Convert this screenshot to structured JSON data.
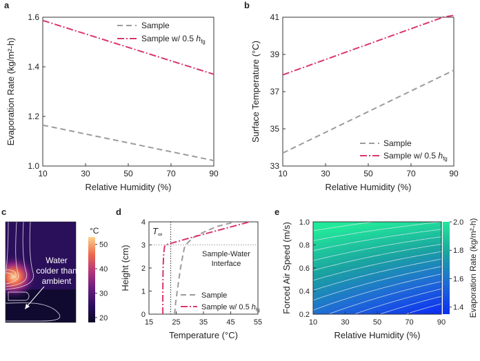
{
  "panel_labels": {
    "a": "a",
    "b": "b",
    "c": "c",
    "d": "d",
    "e": "e"
  },
  "series_names": {
    "sample": "Sample",
    "half_prefix": "Sample w/ 0.5 ",
    "h_sym": "h",
    "h_sub": "fg"
  },
  "colors": {
    "sample": "#9b9b9b",
    "half": "#d9366b",
    "grid_text": "#222222"
  },
  "panel_c": {
    "title": "",
    "annotation_line1": "Water",
    "annotation_line2": "colder than",
    "annotation_line3": "ambient",
    "colorbar_unit": "°C",
    "colorbar_ticks": [
      20,
      30,
      40,
      50
    ],
    "colorbar_range": [
      18,
      53
    ]
  },
  "chart_data": [
    {
      "id": "a",
      "type": "line",
      "xlabel": "Relative Humidity (%)",
      "ylabel": "Evaporation Rate (kg/m²-h)",
      "xlim": [
        10,
        90
      ],
      "ylim": [
        1.0,
        1.6
      ],
      "xticks": [
        10,
        30,
        50,
        70,
        90
      ],
      "yticks": [
        1.0,
        1.2,
        1.4,
        1.6
      ],
      "ytick_labels": [
        "1.0",
        "1.2",
        "1.4",
        "1.6"
      ],
      "legend": "top-right",
      "series": [
        {
          "name": "Sample",
          "style": "dashed",
          "x": [
            10,
            90
          ],
          "y": [
            1.165,
            1.022
          ]
        },
        {
          "name": "Sample w/ 0.5 hfg",
          "style": "dashdot",
          "x": [
            10,
            90
          ],
          "y": [
            1.587,
            1.37
          ]
        }
      ]
    },
    {
      "id": "b",
      "type": "line",
      "xlabel": "Relative Humidity (%)",
      "ylabel": "Surface Temperature (°C)",
      "xlim": [
        10,
        90
      ],
      "ylim": [
        33,
        41
      ],
      "xticks": [
        10,
        30,
        50,
        70,
        90
      ],
      "yticks": [
        33,
        35,
        37,
        39,
        41
      ],
      "ytick_labels": [
        "33",
        "35",
        "37",
        "39",
        "41"
      ],
      "legend": "bottom-right",
      "series": [
        {
          "name": "Sample",
          "style": "dashed",
          "x": [
            10,
            90
          ],
          "y": [
            33.7,
            38.15
          ]
        },
        {
          "name": "Sample w/ 0.5 hfg",
          "style": "dashdot",
          "x": [
            10,
            85,
            90
          ],
          "y": [
            37.9,
            41.0,
            41.1
          ]
        }
      ]
    },
    {
      "id": "d",
      "type": "line",
      "xlabel": "Temperature (°C)",
      "ylabel": "Height (cm)",
      "xlim": [
        15,
        55
      ],
      "ylim": [
        0,
        4
      ],
      "xticks": [
        15,
        25,
        35,
        45,
        55
      ],
      "yticks": [
        0,
        1,
        2,
        3,
        4
      ],
      "ytick_labels": [
        "0",
        "1",
        "2",
        "3",
        "4"
      ],
      "ambient_temperature": 23,
      "ambient_label": "T",
      "ambient_sub": "∞",
      "interface_height": 3,
      "interface_label_line1": "Sample-Water",
      "interface_label_line2": "Interface",
      "legend": "bottom-right",
      "series": [
        {
          "name": "Sample",
          "style": "dashed",
          "x": [
            24.4,
            24.8,
            25.6,
            26.6,
            27.5,
            28.2,
            31,
            35,
            40,
            45,
            47
          ],
          "y": [
            0,
            0.5,
            1.2,
            2.0,
            2.6,
            2.97,
            3.3,
            3.55,
            3.8,
            3.95,
            4.0
          ]
        },
        {
          "name": "Sample w/ 0.5 hfg",
          "style": "dashdot",
          "x": [
            20.1,
            20.1,
            20.2,
            20.4,
            20.7,
            21.0,
            30,
            40,
            52
          ],
          "y": [
            0,
            1.0,
            2.0,
            2.6,
            2.9,
            3.0,
            3.3,
            3.62,
            4.0
          ]
        }
      ]
    },
    {
      "id": "e",
      "type": "heatmap",
      "xlabel": "Relative Humidity (%)",
      "ylabel": "Forced Air Speed (m/s)",
      "xlim": [
        10,
        90
      ],
      "ylim": [
        0.2,
        1.0
      ],
      "xticks": [
        10,
        30,
        50,
        70,
        90
      ],
      "yticks": [
        0.2,
        0.4,
        0.6,
        0.8,
        1.0
      ],
      "ytick_labels": [
        "0.2",
        "0.4",
        "0.6",
        "0.8",
        "1.0"
      ],
      "colorbar_label": "Evaporation Rate (kg/m²-h)",
      "colorbar_range": [
        1.35,
        2.0
      ],
      "colorbar_ticks": [
        1.4,
        1.6,
        1.8,
        2.0
      ],
      "colorbar_tick_labels": [
        "1.4",
        "1.6",
        "1.8",
        "2.0"
      ],
      "contour_levels": [
        1.4,
        1.45,
        1.5,
        1.55,
        1.6,
        1.65,
        1.7,
        1.75,
        1.8,
        1.85,
        1.9,
        1.95,
        2.0
      ],
      "model": {
        "base": 1.33,
        "rh_coef": 0.25,
        "speed_coef": 0.62
      }
    }
  ]
}
